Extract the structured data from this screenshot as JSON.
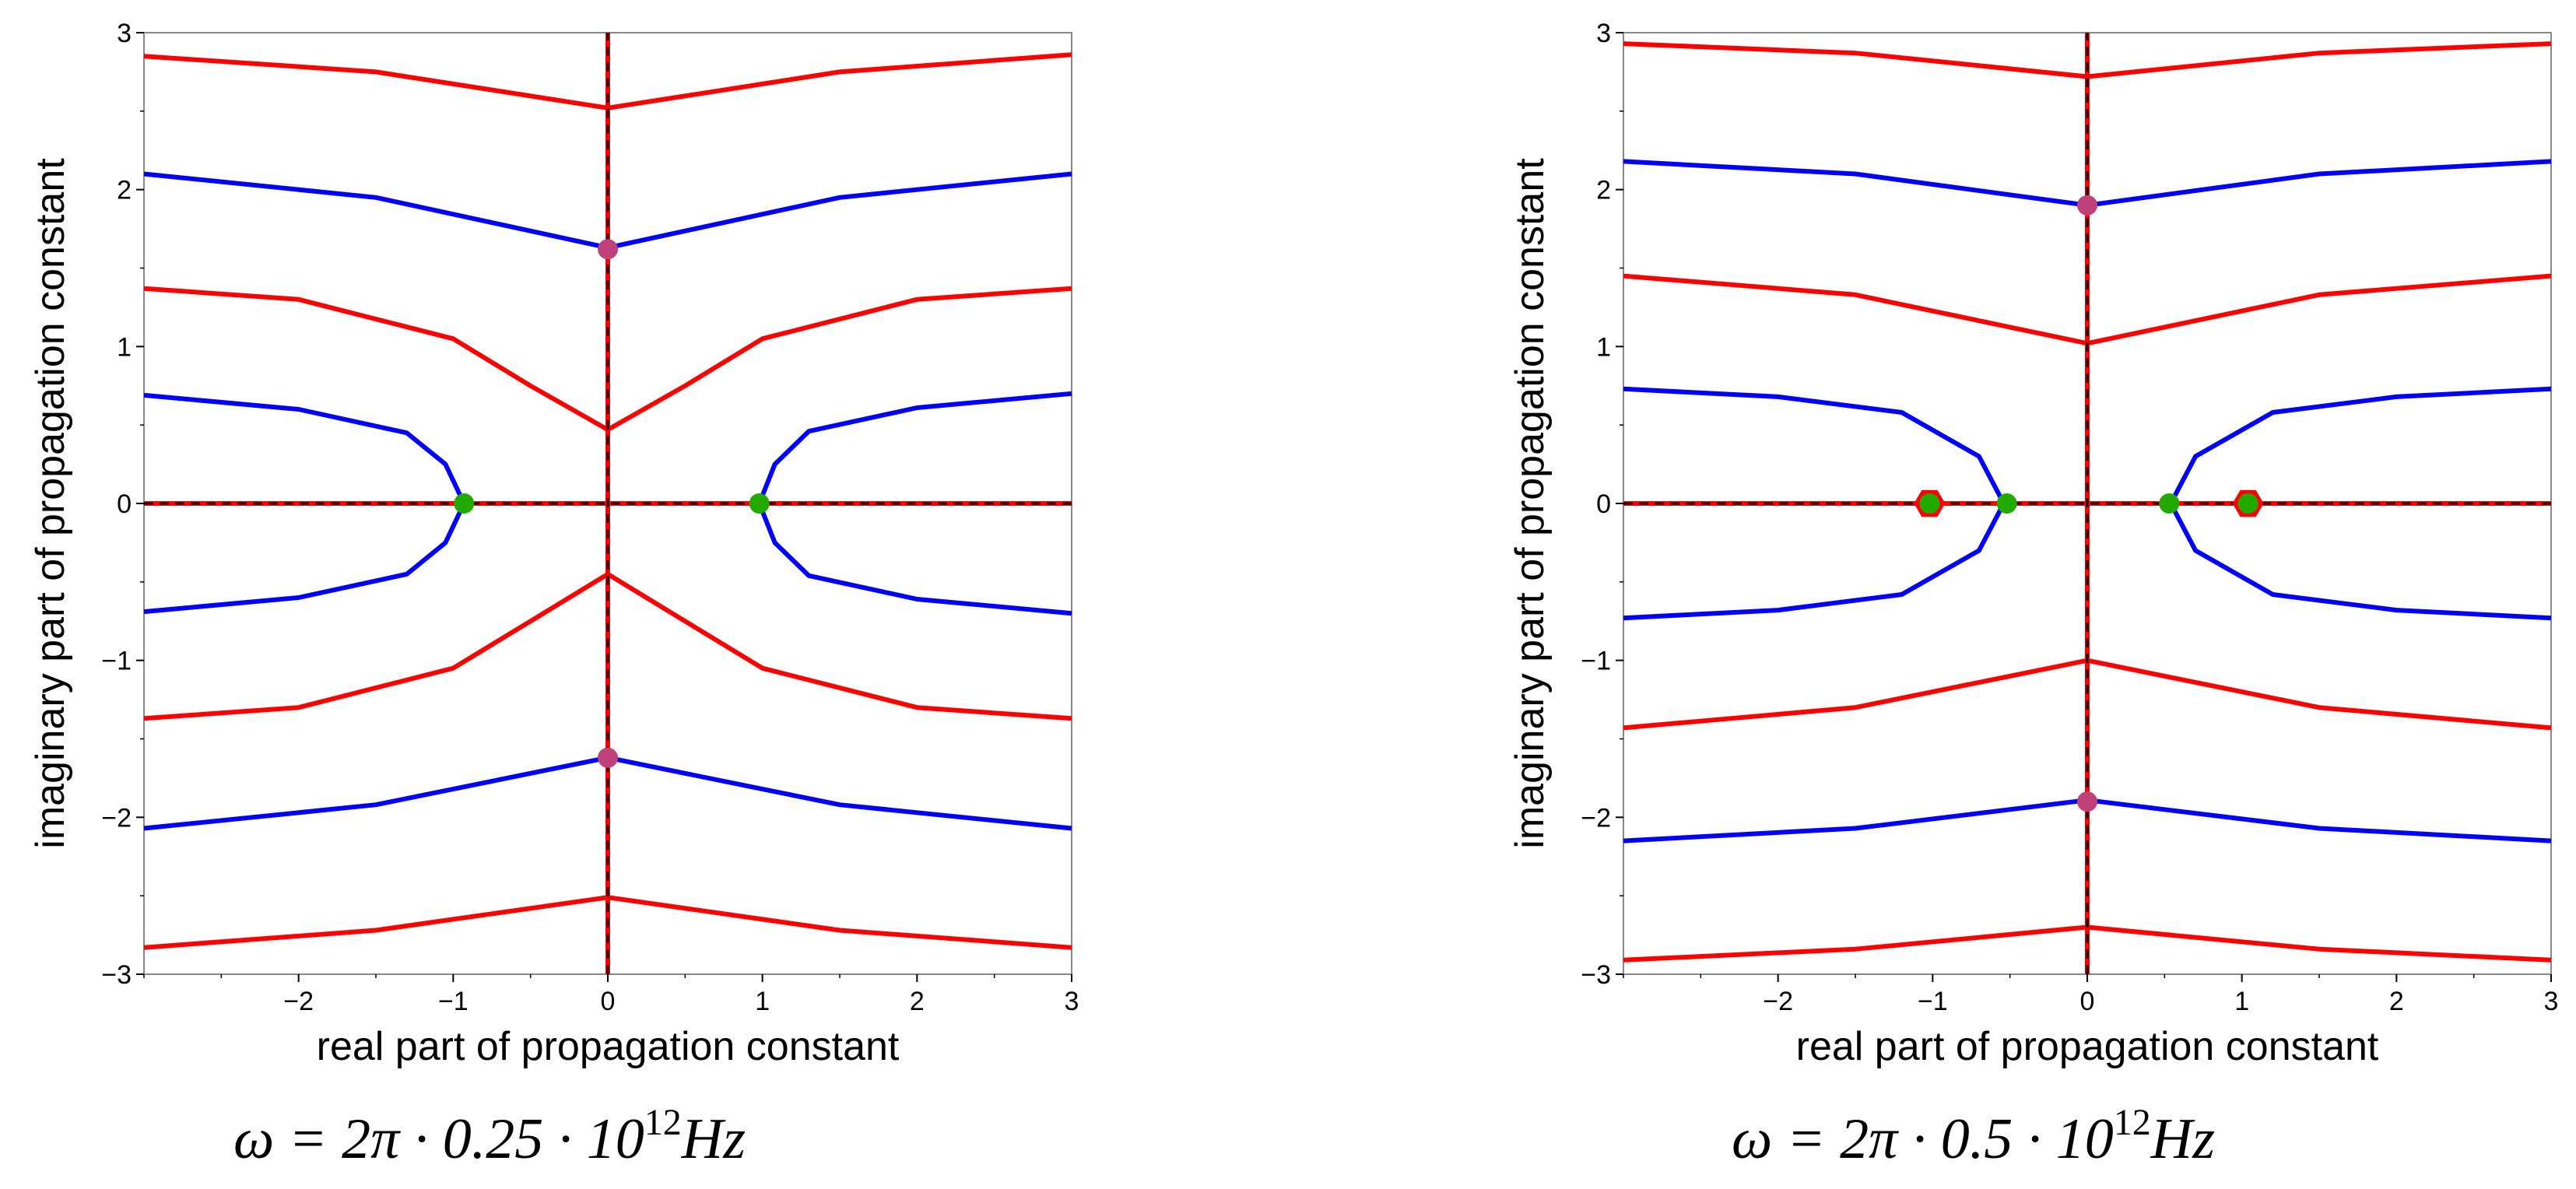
{
  "chart_data": [
    {
      "type": "line",
      "title": "",
      "caption": "ω = 2π · 0.25 · 10",
      "caption_exp": "12",
      "caption_unit": "Hz",
      "xlabel": "real part of propagation constant",
      "ylabel": "imaginary part of propagation constant",
      "xlim": [
        -3,
        3
      ],
      "ylim": [
        -3,
        3
      ],
      "xticks": [
        -2,
        -1,
        0,
        1,
        2,
        3
      ],
      "xtick_labels": [
        "−2",
        "−1",
        "0",
        "1",
        "2",
        "3"
      ],
      "yticks": [
        -3,
        -2,
        -1,
        0,
        1,
        2,
        3
      ],
      "ytick_labels": [
        "−3",
        "−2",
        "−1",
        "0",
        "1",
        "2",
        "3"
      ],
      "grid": false,
      "colors": {
        "red": "#ff0000",
        "blue": "#0000ff",
        "green": "#22aa00",
        "magenta": "#c0407a",
        "dashed": "#000000"
      },
      "series": [
        {
          "color": "red",
          "x": [
            -3,
            -1.5,
            0,
            1.5,
            3
          ],
          "y": [
            2.85,
            2.75,
            2.52,
            2.75,
            2.86
          ]
        },
        {
          "color": "red",
          "x": [
            -3,
            -1.5,
            0,
            1.5,
            3
          ],
          "y": [
            -2.83,
            -2.72,
            -2.51,
            -2.72,
            -2.83
          ]
        },
        {
          "color": "blue",
          "x": [
            -3,
            -1.5,
            0,
            1.5,
            3
          ],
          "y": [
            2.1,
            1.95,
            1.63,
            1.95,
            2.1
          ]
        },
        {
          "color": "blue",
          "x": [
            -3,
            -1.5,
            0,
            1.5,
            3
          ],
          "y": [
            -2.07,
            -1.92,
            -1.62,
            -1.92,
            -2.07
          ]
        },
        {
          "color": "red",
          "x": [
            -3,
            -2,
            -1,
            -0.5,
            0,
            0.5,
            1,
            2,
            3
          ],
          "y": [
            1.37,
            1.3,
            1.05,
            0.75,
            0.47,
            0.75,
            1.05,
            1.3,
            1.37
          ]
        },
        {
          "color": "red",
          "x": [
            -3,
            -2,
            -1,
            -0.5,
            0,
            0.5,
            1,
            2,
            3
          ],
          "y": [
            -1.37,
            -1.3,
            -1.05,
            -0.75,
            -0.45,
            -0.75,
            -1.05,
            -1.3,
            -1.37
          ]
        },
        {
          "color": "blue",
          "x": [
            -3,
            -2,
            -1.3,
            -1.05,
            -0.93,
            -1.05,
            -1.3,
            -2,
            -3
          ],
          "y": [
            0.69,
            0.6,
            0.45,
            0.25,
            0,
            -0.25,
            -0.45,
            -0.6,
            -0.69
          ]
        },
        {
          "color": "blue",
          "x": [
            3,
            2,
            1.3,
            1.08,
            0.98,
            1.08,
            1.3,
            2,
            3
          ],
          "y": [
            0.7,
            0.61,
            0.46,
            0.25,
            0,
            -0.25,
            -0.46,
            -0.61,
            -0.7
          ]
        },
        {
          "color": "red",
          "x": [
            -3,
            3
          ],
          "y": [
            0,
            0
          ]
        },
        {
          "color": "red",
          "x": [
            0,
            0
          ],
          "y": [
            -3,
            3
          ]
        }
      ],
      "dashed_lines": [
        {
          "x": [
            -3,
            3
          ],
          "y": [
            0,
            0
          ]
        },
        {
          "x": [
            0,
            0
          ],
          "y": [
            -3,
            3
          ]
        }
      ],
      "markers": [
        {
          "x": -0.93,
          "y": 0,
          "color": "green"
        },
        {
          "x": 0.98,
          "y": 0,
          "color": "green"
        },
        {
          "x": 0,
          "y": 1.62,
          "color": "magenta"
        },
        {
          "x": 0,
          "y": -1.62,
          "color": "magenta"
        }
      ],
      "hex_markers": []
    },
    {
      "type": "line",
      "title": "",
      "caption": "ω = 2π · 0.5 · 10",
      "caption_exp": "12",
      "caption_unit": "Hz",
      "xlabel": "real part of propagation constant",
      "ylabel": "imaginary part of propagation constant",
      "xlim": [
        -3,
        3
      ],
      "ylim": [
        -3,
        3
      ],
      "xticks": [
        -2,
        -1,
        0,
        1,
        2,
        3
      ],
      "xtick_labels": [
        "−2",
        "−1",
        "0",
        "1",
        "2",
        "3"
      ],
      "yticks": [
        -3,
        -2,
        -1,
        0,
        1,
        2,
        3
      ],
      "ytick_labels": [
        "−3",
        "−2",
        "−1",
        "0",
        "1",
        "2",
        "3"
      ],
      "grid": false,
      "colors": {
        "red": "#ff0000",
        "blue": "#0000ff",
        "green": "#22aa00",
        "magenta": "#c0407a",
        "dashed": "#000000"
      },
      "series": [
        {
          "color": "red",
          "x": [
            -3,
            -1.5,
            0,
            1.5,
            3
          ],
          "y": [
            2.93,
            2.87,
            2.72,
            2.87,
            2.93
          ]
        },
        {
          "color": "red",
          "x": [
            -3,
            -1.5,
            0,
            1.5,
            3
          ],
          "y": [
            -2.91,
            -2.84,
            -2.7,
            -2.84,
            -2.91
          ]
        },
        {
          "color": "blue",
          "x": [
            -3,
            -1.5,
            0,
            1.5,
            3
          ],
          "y": [
            2.18,
            2.1,
            1.9,
            2.1,
            2.18
          ]
        },
        {
          "color": "blue",
          "x": [
            -3,
            -1.5,
            0,
            1.5,
            3
          ],
          "y": [
            -2.15,
            -2.07,
            -1.89,
            -2.07,
            -2.15
          ]
        },
        {
          "color": "red",
          "x": [
            -3,
            -1.5,
            0,
            1.5,
            3
          ],
          "y": [
            1.45,
            1.33,
            1.02,
            1.33,
            1.45
          ]
        },
        {
          "color": "red",
          "x": [
            -3,
            -1.5,
            0,
            1.5,
            3
          ],
          "y": [
            -1.43,
            -1.3,
            -1.0,
            -1.3,
            -1.43
          ]
        },
        {
          "color": "blue",
          "x": [
            -3,
            -2,
            -1.2,
            -0.7,
            -0.54,
            -0.7,
            -1.2,
            -2,
            -3
          ],
          "y": [
            0.73,
            0.68,
            0.58,
            0.3,
            0,
            -0.3,
            -0.58,
            -0.68,
            -0.73
          ]
        },
        {
          "color": "blue",
          "x": [
            3,
            2,
            1.2,
            0.7,
            0.54,
            0.7,
            1.2,
            2,
            3
          ],
          "y": [
            0.73,
            0.68,
            0.58,
            0.3,
            0,
            -0.3,
            -0.58,
            -0.68,
            -0.73
          ]
        },
        {
          "color": "red",
          "x": [
            -3,
            3
          ],
          "y": [
            0,
            0
          ]
        },
        {
          "color": "red",
          "x": [
            0,
            0
          ],
          "y": [
            -3,
            3
          ]
        }
      ],
      "dashed_lines": [
        {
          "x": [
            -3,
            3
          ],
          "y": [
            0,
            0
          ]
        },
        {
          "x": [
            0,
            0
          ],
          "y": [
            -3,
            3
          ]
        }
      ],
      "markers": [
        {
          "x": -0.52,
          "y": 0,
          "color": "green"
        },
        {
          "x": 0.53,
          "y": 0,
          "color": "green"
        },
        {
          "x": 0,
          "y": 1.9,
          "color": "magenta"
        },
        {
          "x": 0,
          "y": -1.9,
          "color": "magenta"
        },
        {
          "x": -1.02,
          "y": 0,
          "color": "green"
        },
        {
          "x": 1.04,
          "y": 0,
          "color": "green"
        }
      ],
      "hex_markers": [
        {
          "x": -1.02,
          "y": 0,
          "color": "red"
        },
        {
          "x": 1.04,
          "y": 0,
          "color": "red"
        }
      ]
    }
  ]
}
